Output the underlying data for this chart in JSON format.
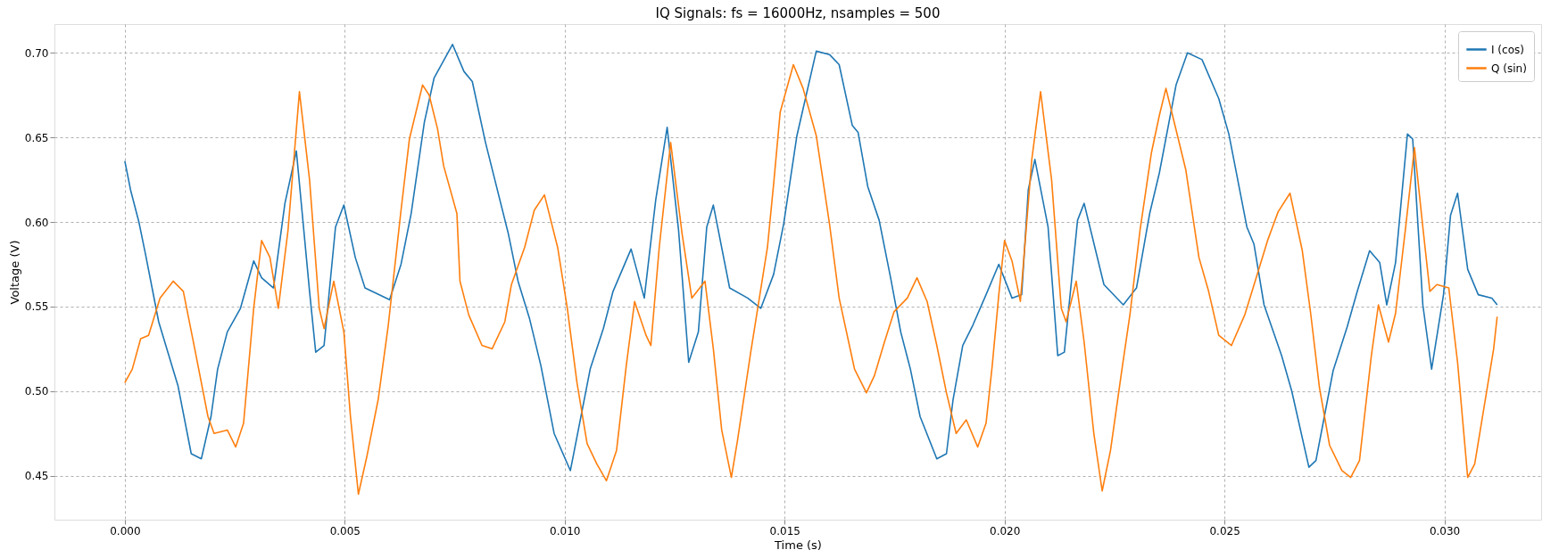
{
  "chart_data": {
    "type": "line",
    "title": "IQ Signals: fs = 16000Hz, nsamples = 500",
    "xlabel": "Time (s)",
    "ylabel": "Voltage (V)",
    "xlim": [
      -0.0016,
      0.0322
    ],
    "ylim": [
      0.424,
      0.717
    ],
    "xticks": [
      {
        "value": 0,
        "label": "0.000"
      },
      {
        "value": 0.005,
        "label": "0.005"
      },
      {
        "value": 0.01,
        "label": "0.010"
      },
      {
        "value": 0.015,
        "label": "0.015"
      },
      {
        "value": 0.02,
        "label": "0.020"
      },
      {
        "value": 0.025,
        "label": "0.025"
      },
      {
        "value": 0.03,
        "label": "0.030"
      }
    ],
    "yticks": [
      0.45,
      {
        "value": 0.5,
        "label": "0.50"
      },
      0.55,
      {
        "value": 0.6,
        "label": "0.60"
      },
      0.65,
      {
        "value": 0.7,
        "label": "0.70"
      }
    ],
    "grid": true,
    "legend": "top right",
    "line_style": "solid",
    "series": [
      {
        "name": "I (cos)",
        "color": "#1f77b4",
        "x": [
          0,
          0.00013,
          0.00032,
          0.00047,
          0.00062,
          0.00077,
          0.00121,
          0.00151,
          0.00174,
          0.00196,
          0.00211,
          0.00233,
          0.00263,
          0.00293,
          0.00311,
          0.00338,
          0.00364,
          0.0039,
          0.0042,
          0.00434,
          0.00453,
          0.00479,
          0.00498,
          0.00524,
          0.00546,
          0.00602,
          0.00628,
          0.00651,
          0.00681,
          0.00703,
          0.00745,
          0.00771,
          0.0079,
          0.0082,
          0.00872,
          0.00894,
          0.0092,
          0.00946,
          0.00976,
          0.01013,
          0.01058,
          0.01088,
          0.0111,
          0.01151,
          0.01181,
          0.01207,
          0.01233,
          0.01259,
          0.01282,
          0.01304,
          0.01323,
          0.01338,
          0.01375,
          0.01416,
          0.01446,
          0.01475,
          0.01498,
          0.01528,
          0.01572,
          0.01602,
          0.01624,
          0.01654,
          0.01667,
          0.01689,
          0.01715,
          0.01741,
          0.01764,
          0.01786,
          0.01808,
          0.01846,
          0.01868,
          0.01883,
          0.01905,
          0.01928,
          0.01958,
          0.01987,
          0.02017,
          0.02039,
          0.02054,
          0.02069,
          0.02099,
          0.02121,
          0.02136,
          0.02166,
          0.02181,
          0.02226,
          0.0227,
          0.023,
          0.0233,
          0.02352,
          0.0239,
          0.02416,
          0.02449,
          0.02487,
          0.0251,
          0.02551,
          0.02567,
          0.0259,
          0.0263,
          0.02653,
          0.02692,
          0.02708,
          0.02747,
          0.02779,
          0.02802,
          0.0283,
          0.02853,
          0.02869,
          0.02889,
          0.02916,
          0.02928,
          0.02951,
          0.02971,
          0.02998,
          0.03014,
          0.0303,
          0.03053,
          0.03077,
          0.03108,
          0.0312
        ],
        "values": [
          0.636,
          0.619,
          0.6,
          0.581,
          0.561,
          0.541,
          0.503,
          0.463,
          0.46,
          0.485,
          0.513,
          0.535,
          0.549,
          0.577,
          0.567,
          0.561,
          0.611,
          0.642,
          0.559,
          0.523,
          0.527,
          0.597,
          0.61,
          0.579,
          0.561,
          0.554,
          0.575,
          0.605,
          0.659,
          0.685,
          0.705,
          0.689,
          0.683,
          0.647,
          0.593,
          0.565,
          0.543,
          0.515,
          0.475,
          0.453,
          0.513,
          0.537,
          0.559,
          0.584,
          0.555,
          0.613,
          0.656,
          0.595,
          0.517,
          0.535,
          0.597,
          0.61,
          0.561,
          0.555,
          0.549,
          0.569,
          0.599,
          0.651,
          0.701,
          0.699,
          0.693,
          0.657,
          0.653,
          0.621,
          0.601,
          0.567,
          0.535,
          0.513,
          0.485,
          0.46,
          0.463,
          0.495,
          0.527,
          0.539,
          0.557,
          0.575,
          0.555,
          0.557,
          0.619,
          0.637,
          0.597,
          0.521,
          0.523,
          0.601,
          0.611,
          0.563,
          0.551,
          0.561,
          0.605,
          0.629,
          0.681,
          0.7,
          0.696,
          0.673,
          0.652,
          0.597,
          0.587,
          0.551,
          0.521,
          0.5,
          0.455,
          0.459,
          0.512,
          0.538,
          0.559,
          0.583,
          0.576,
          0.551,
          0.576,
          0.652,
          0.649,
          0.551,
          0.513,
          0.557,
          0.604,
          0.617,
          0.572,
          0.557,
          0.555,
          0.551
        ]
      },
      {
        "name": "Q (sin)",
        "color": "#ff7f0e",
        "x": [
          0,
          0.00017,
          0.00036,
          0.00054,
          0.0008,
          0.0011,
          0.00133,
          0.00159,
          0.00189,
          0.00203,
          0.00233,
          0.00252,
          0.0027,
          0.00293,
          0.00311,
          0.0033,
          0.00349,
          0.00371,
          0.00397,
          0.0042,
          0.00442,
          0.00453,
          0.00475,
          0.00498,
          0.00513,
          0.00531,
          0.0055,
          0.00576,
          0.00599,
          0.00628,
          0.00647,
          0.00677,
          0.00692,
          0.00711,
          0.00725,
          0.00755,
          0.00762,
          0.00782,
          0.00812,
          0.00835,
          0.00864,
          0.00879,
          0.00909,
          0.00931,
          0.00954,
          0.00984,
          0.01006,
          0.01028,
          0.01051,
          0.01073,
          0.01095,
          0.01118,
          0.0114,
          0.01159,
          0.01185,
          0.01196,
          0.01215,
          0.01241,
          0.01267,
          0.01289,
          0.01319,
          0.01338,
          0.01357,
          0.01379,
          0.01393,
          0.01423,
          0.01461,
          0.01476,
          0.0149,
          0.0152,
          0.01542,
          0.01572,
          0.01602,
          0.01624,
          0.01654,
          0.01659,
          0.01686,
          0.01704,
          0.01727,
          0.01749,
          0.01779,
          0.01801,
          0.01824,
          0.01846,
          0.01868,
          0.0189,
          0.01913,
          0.01939,
          0.01958,
          0.01972,
          0.01987,
          0.02,
          0.02017,
          0.02036,
          0.02062,
          0.02082,
          0.02107,
          0.02129,
          0.0214,
          0.02163,
          0.02181,
          0.02203,
          0.02222,
          0.02241,
          0.02267,
          0.02285,
          0.02308,
          0.02334,
          0.02352,
          0.02367,
          0.02382,
          0.02412,
          0.02442,
          0.02464,
          0.02487,
          0.02516,
          0.02546,
          0.02571,
          0.02598,
          0.02622,
          0.02649,
          0.02677,
          0.02696,
          0.02716,
          0.02739,
          0.02767,
          0.02787,
          0.02807,
          0.02834,
          0.0285,
          0.02873,
          0.02889,
          0.02912,
          0.02932,
          0.02951,
          0.02967,
          0.02983,
          0.0301,
          0.0303,
          0.03053,
          0.03069,
          0.03093,
          0.03112,
          0.0312
        ],
        "values": [
          0.505,
          0.513,
          0.531,
          0.533,
          0.555,
          0.565,
          0.559,
          0.525,
          0.485,
          0.475,
          0.477,
          0.467,
          0.481,
          0.549,
          0.589,
          0.579,
          0.549,
          0.595,
          0.677,
          0.625,
          0.549,
          0.537,
          0.565,
          0.535,
          0.485,
          0.439,
          0.461,
          0.495,
          0.539,
          0.607,
          0.649,
          0.681,
          0.675,
          0.655,
          0.633,
          0.605,
          0.565,
          0.545,
          0.527,
          0.525,
          0.541,
          0.563,
          0.585,
          0.607,
          0.616,
          0.585,
          0.549,
          0.505,
          0.469,
          0.457,
          0.447,
          0.465,
          0.515,
          0.553,
          0.533,
          0.527,
          0.585,
          0.647,
          0.593,
          0.555,
          0.565,
          0.525,
          0.477,
          0.449,
          0.471,
          0.523,
          0.585,
          0.625,
          0.665,
          0.693,
          0.679,
          0.651,
          0.599,
          0.555,
          0.519,
          0.513,
          0.499,
          0.509,
          0.529,
          0.547,
          0.555,
          0.567,
          0.553,
          0.527,
          0.499,
          0.475,
          0.483,
          0.467,
          0.481,
          0.515,
          0.557,
          0.589,
          0.577,
          0.553,
          0.637,
          0.677,
          0.625,
          0.549,
          0.541,
          0.565,
          0.529,
          0.475,
          0.441,
          0.465,
          0.513,
          0.545,
          0.595,
          0.641,
          0.663,
          0.679,
          0.663,
          0.631,
          0.579,
          0.559,
          0.533,
          0.527,
          0.545,
          0.566,
          0.589,
          0.606,
          0.617,
          0.583,
          0.546,
          0.502,
          0.468,
          0.453,
          0.449,
          0.459,
          0.521,
          0.551,
          0.529,
          0.546,
          0.597,
          0.644,
          0.597,
          0.559,
          0.563,
          0.561,
          0.517,
          0.449,
          0.457,
          0.495,
          0.525,
          0.544
        ]
      }
    ]
  }
}
